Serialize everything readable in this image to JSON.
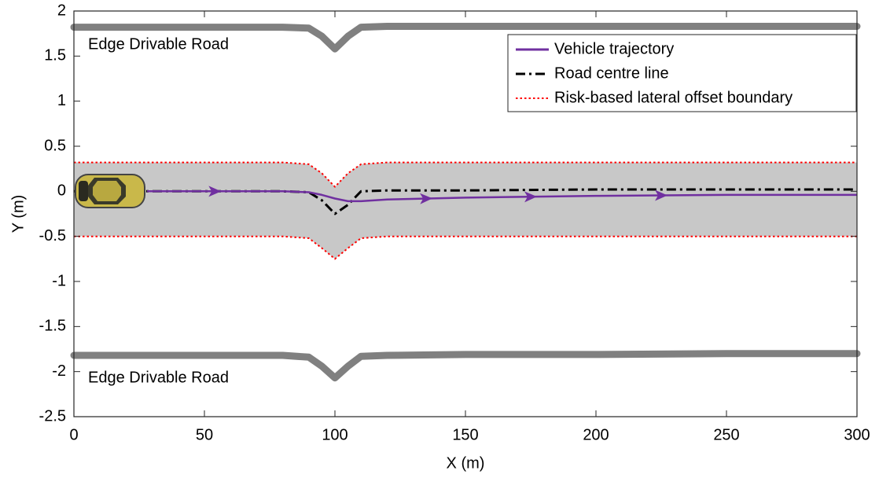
{
  "chart_data": {
    "type": "line",
    "xlabel": "X (m)",
    "ylabel": "Y (m)",
    "x": [
      0,
      28,
      80,
      90,
      95,
      100,
      105,
      110,
      120,
      150,
      200,
      250,
      300
    ],
    "xlim": [
      0,
      300
    ],
    "ylim": [
      -2.5,
      2
    ],
    "xticks": [
      0,
      50,
      100,
      150,
      200,
      250,
      300
    ],
    "yticks": [
      2,
      1.5,
      1,
      0.5,
      0,
      -0.5,
      -1,
      -1.5,
      -2,
      -2.5
    ],
    "legend": "upper right",
    "series": [
      {
        "name": "Vehicle trajectory",
        "color": "#7030a0",
        "style": "solid",
        "values": [
          null,
          0,
          0,
          -0.01,
          -0.04,
          -0.08,
          -0.11,
          -0.11,
          -0.09,
          -0.07,
          -0.05,
          -0.04,
          -0.04
        ]
      },
      {
        "name": "Road centre line",
        "color": "#000000",
        "style": "dashdot",
        "values": [
          0,
          0,
          0,
          -0.01,
          -0.1,
          -0.25,
          -0.15,
          0,
          0.01,
          0.01,
          0.02,
          0.02,
          0.02
        ]
      },
      {
        "name": "Risk-based lateral offset boundary",
        "color": "#ff0000",
        "style": "dotted",
        "fill": "#c8c8c8",
        "upper": [
          0.32,
          0.32,
          0.32,
          0.3,
          0.2,
          0.05,
          0.2,
          0.3,
          0.32,
          0.32,
          0.32,
          0.32,
          0.32
        ],
        "lower": [
          -0.5,
          -0.5,
          -0.5,
          -0.52,
          -0.63,
          -0.75,
          -0.63,
          -0.52,
          -0.5,
          -0.5,
          -0.5,
          -0.5,
          -0.5
        ]
      }
    ],
    "road_edges": {
      "color": "#808080",
      "upper": [
        1.82,
        1.82,
        1.82,
        1.81,
        1.72,
        1.58,
        1.72,
        1.82,
        1.83,
        1.83,
        1.83,
        1.83,
        1.83
      ],
      "lower": [
        -1.82,
        -1.82,
        -1.82,
        -1.84,
        -1.94,
        -2.07,
        -1.94,
        -1.83,
        -1.82,
        -1.81,
        -1.81,
        -1.8,
        -1.8
      ]
    },
    "annotations": [
      "Edge Drivable Road",
      "Edge Drivable Road"
    ]
  }
}
